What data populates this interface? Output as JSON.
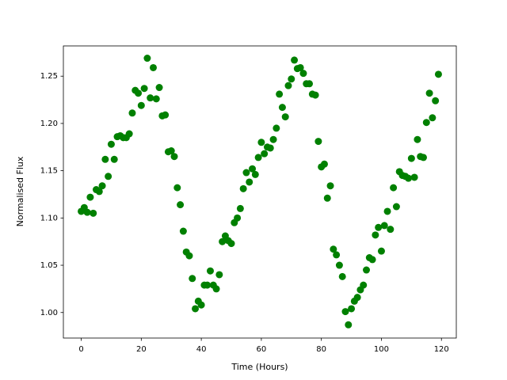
{
  "chart_data": {
    "type": "scatter",
    "xlabel": "Time (Hours)",
    "ylabel": "Normalised Flux",
    "color": "#008000",
    "x": [
      0,
      1,
      2,
      3,
      4,
      5,
      6,
      7,
      8,
      9,
      10,
      11,
      12,
      13,
      14,
      15,
      16,
      17,
      18,
      19,
      20,
      21,
      22,
      23,
      24,
      25,
      26,
      27,
      28,
      29,
      30,
      31,
      32,
      33,
      34,
      35,
      36,
      37,
      38,
      39,
      40,
      41,
      42,
      43,
      44,
      45,
      46,
      47,
      48,
      49,
      50,
      51,
      52,
      53,
      54,
      55,
      56,
      57,
      58,
      59,
      60,
      61,
      62,
      63,
      64,
      65,
      66,
      67,
      68,
      69,
      70,
      71,
      72,
      73,
      74,
      75,
      76,
      77,
      78,
      79,
      80,
      81,
      82,
      83,
      84,
      85,
      86,
      87,
      88,
      89,
      90,
      91,
      92,
      93,
      94,
      95,
      96,
      97,
      98,
      99,
      100,
      101,
      102,
      103,
      104,
      105,
      106,
      107,
      108,
      109,
      110,
      111,
      112,
      113,
      114,
      115,
      116,
      117,
      118,
      119
    ],
    "values": [
      1.107,
      1.111,
      1.106,
      1.122,
      1.105,
      1.13,
      1.128,
      1.134,
      1.162,
      1.144,
      1.178,
      1.162,
      1.186,
      1.187,
      1.185,
      1.185,
      1.189,
      1.211,
      1.235,
      1.232,
      1.219,
      1.237,
      1.269,
      1.227,
      1.259,
      1.226,
      1.238,
      1.208,
      1.209,
      1.17,
      1.171,
      1.165,
      1.132,
      1.114,
      1.086,
      1.064,
      1.06,
      1.036,
      1.004,
      1.012,
      1.008,
      1.029,
      1.029,
      1.044,
      1.029,
      1.025,
      1.04,
      1.075,
      1.081,
      1.076,
      1.073,
      1.095,
      1.1,
      1.11,
      1.131,
      1.148,
      1.138,
      1.152,
      1.146,
      1.164,
      1.18,
      1.168,
      1.175,
      1.174,
      1.183,
      1.195,
      1.231,
      1.217,
      1.207,
      1.24,
      1.247,
      1.267,
      1.258,
      1.259,
      1.253,
      1.242,
      1.242,
      1.231,
      1.23,
      1.181,
      1.154,
      1.157,
      1.121,
      1.134,
      1.067,
      1.061,
      1.05,
      1.038,
      1.001,
      0.987,
      1.004,
      1.012,
      1.016,
      1.024,
      1.029,
      1.045,
      1.058,
      1.056,
      1.082,
      1.09,
      1.065,
      1.092,
      1.107,
      1.088,
      1.132,
      1.112,
      1.149,
      1.145,
      1.144,
      1.142,
      1.163,
      1.143,
      1.183,
      1.165,
      1.164,
      1.201,
      1.232,
      1.206,
      1.224,
      1.252
    ],
    "xlim": [
      -5.95,
      124.95
    ],
    "xticks": [
      0,
      20,
      40,
      60,
      80,
      100,
      120
    ],
    "ylim": [
      0.973,
      1.282
    ],
    "yticks": [
      {
        "value": 1,
        "label": "1.00"
      },
      1.05,
      {
        "value": 1.1,
        "label": "1.10"
      },
      1.15,
      {
        "value": 1.2,
        "label": "1.20"
      },
      1.25
    ]
  }
}
